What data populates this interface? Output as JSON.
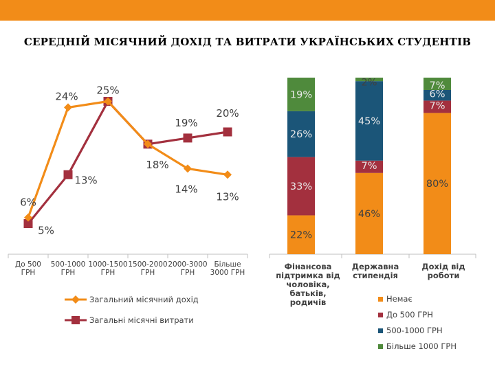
{
  "theme": {
    "accent": "#f28c18"
  },
  "slide": {
    "title": "СЕРЕДНІЙ МІСЯЧНИЙ ДОХІД ТА ВИТРАТИ УКРАЇНСЬКИХ СТУДЕНТІВ"
  },
  "chart_data": [
    {
      "type": "line",
      "categories": [
        "До 500 ГРН",
        "500-1000 ГРН",
        "1000-1500 ГРН",
        "1500-2000 ГРН",
        "2000-3000 ГРН",
        "Більше 3000 ГРН"
      ],
      "category_lines": [
        [
          "До 500",
          "ГРН"
        ],
        [
          "500-1000",
          "ГРН"
        ],
        [
          "1000-1500",
          "ГРН"
        ],
        [
          "1500-2000",
          "ГРН"
        ],
        [
          "2000-3000",
          "ГРН"
        ],
        [
          "Більше",
          "3000 ГРН"
        ]
      ],
      "series": [
        {
          "name": "Загальний місячний дохід",
          "color": "#f28c18",
          "marker": "diamond",
          "values": [
            6,
            24,
            25,
            18,
            14,
            13
          ],
          "labels": [
            "6%",
            "24%",
            "25%",
            "18%",
            "14%",
            "13%"
          ]
        },
        {
          "name": "Загальні місячні витрати",
          "color": "#a3303e",
          "marker": "square",
          "values": [
            5,
            13,
            25,
            18,
            19,
            20
          ],
          "labels": [
            "5%",
            "13%",
            "",
            "",
            "19%",
            "20%"
          ]
        }
      ],
      "ylim": [
        0,
        30
      ]
    },
    {
      "type": "bar",
      "stacked": true,
      "categories": [
        "Фінансова підтримка від чоловіка, батьків, родичів",
        "Державна стипендія",
        "Дохід від роботи"
      ],
      "category_lines": [
        [
          "Фінансова",
          "підтримка від",
          "чоловіка,",
          "батьків,",
          "родичів"
        ],
        [
          "Державна",
          "стипендія"
        ],
        [
          "Дохід від",
          "роботи"
        ]
      ],
      "series": [
        {
          "name": "Немає",
          "color": "#f28c18",
          "values": [
            22,
            46,
            80
          ],
          "labels": [
            "22%",
            "46%",
            "80%"
          ]
        },
        {
          "name": "До 500 ГРН",
          "color": "#a3303e",
          "values": [
            33,
            7,
            7
          ],
          "labels": [
            "33%",
            "7%",
            "7%"
          ]
        },
        {
          "name": "500-1000 ГРН",
          "color": "#1b5578",
          "values": [
            26,
            45,
            6
          ],
          "labels": [
            "26%",
            "45%",
            "6%"
          ]
        },
        {
          "name": "Більше 1000 ГРН",
          "color": "#4f8a3c",
          "values": [
            19,
            2,
            7
          ],
          "labels": [
            "19%",
            "2%",
            "7%"
          ]
        }
      ],
      "ylim": [
        0,
        100
      ]
    }
  ]
}
